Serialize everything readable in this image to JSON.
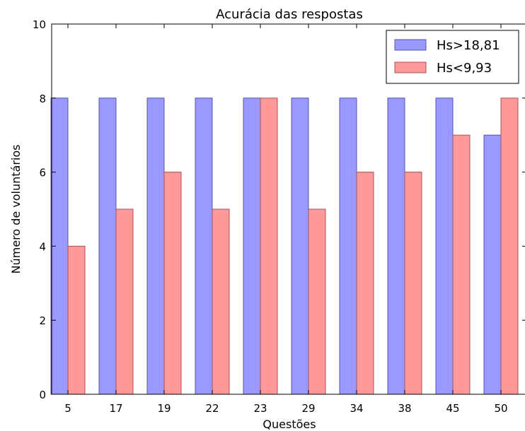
{
  "chart_data": {
    "type": "bar",
    "title": "Acurácia das respostas",
    "xlabel": "Questões",
    "ylabel": "Número de voluntários",
    "categories": [
      "5",
      "17",
      "19",
      "22",
      "23",
      "29",
      "34",
      "38",
      "45",
      "50"
    ],
    "series": [
      {
        "name": "Hs>18,81",
        "color": "#9999ff",
        "values": [
          8,
          8,
          8,
          8,
          8,
          8,
          8,
          8,
          8,
          7
        ]
      },
      {
        "name": "Hs<9,93",
        "color": "#ff9999",
        "values": [
          4,
          5,
          6,
          5,
          8,
          5,
          6,
          6,
          7,
          8
        ]
      }
    ],
    "ylim": [
      0,
      10
    ],
    "yticks": [
      0,
      2,
      4,
      6,
      8,
      10
    ],
    "grid": false,
    "legend_position": "top-right"
  }
}
